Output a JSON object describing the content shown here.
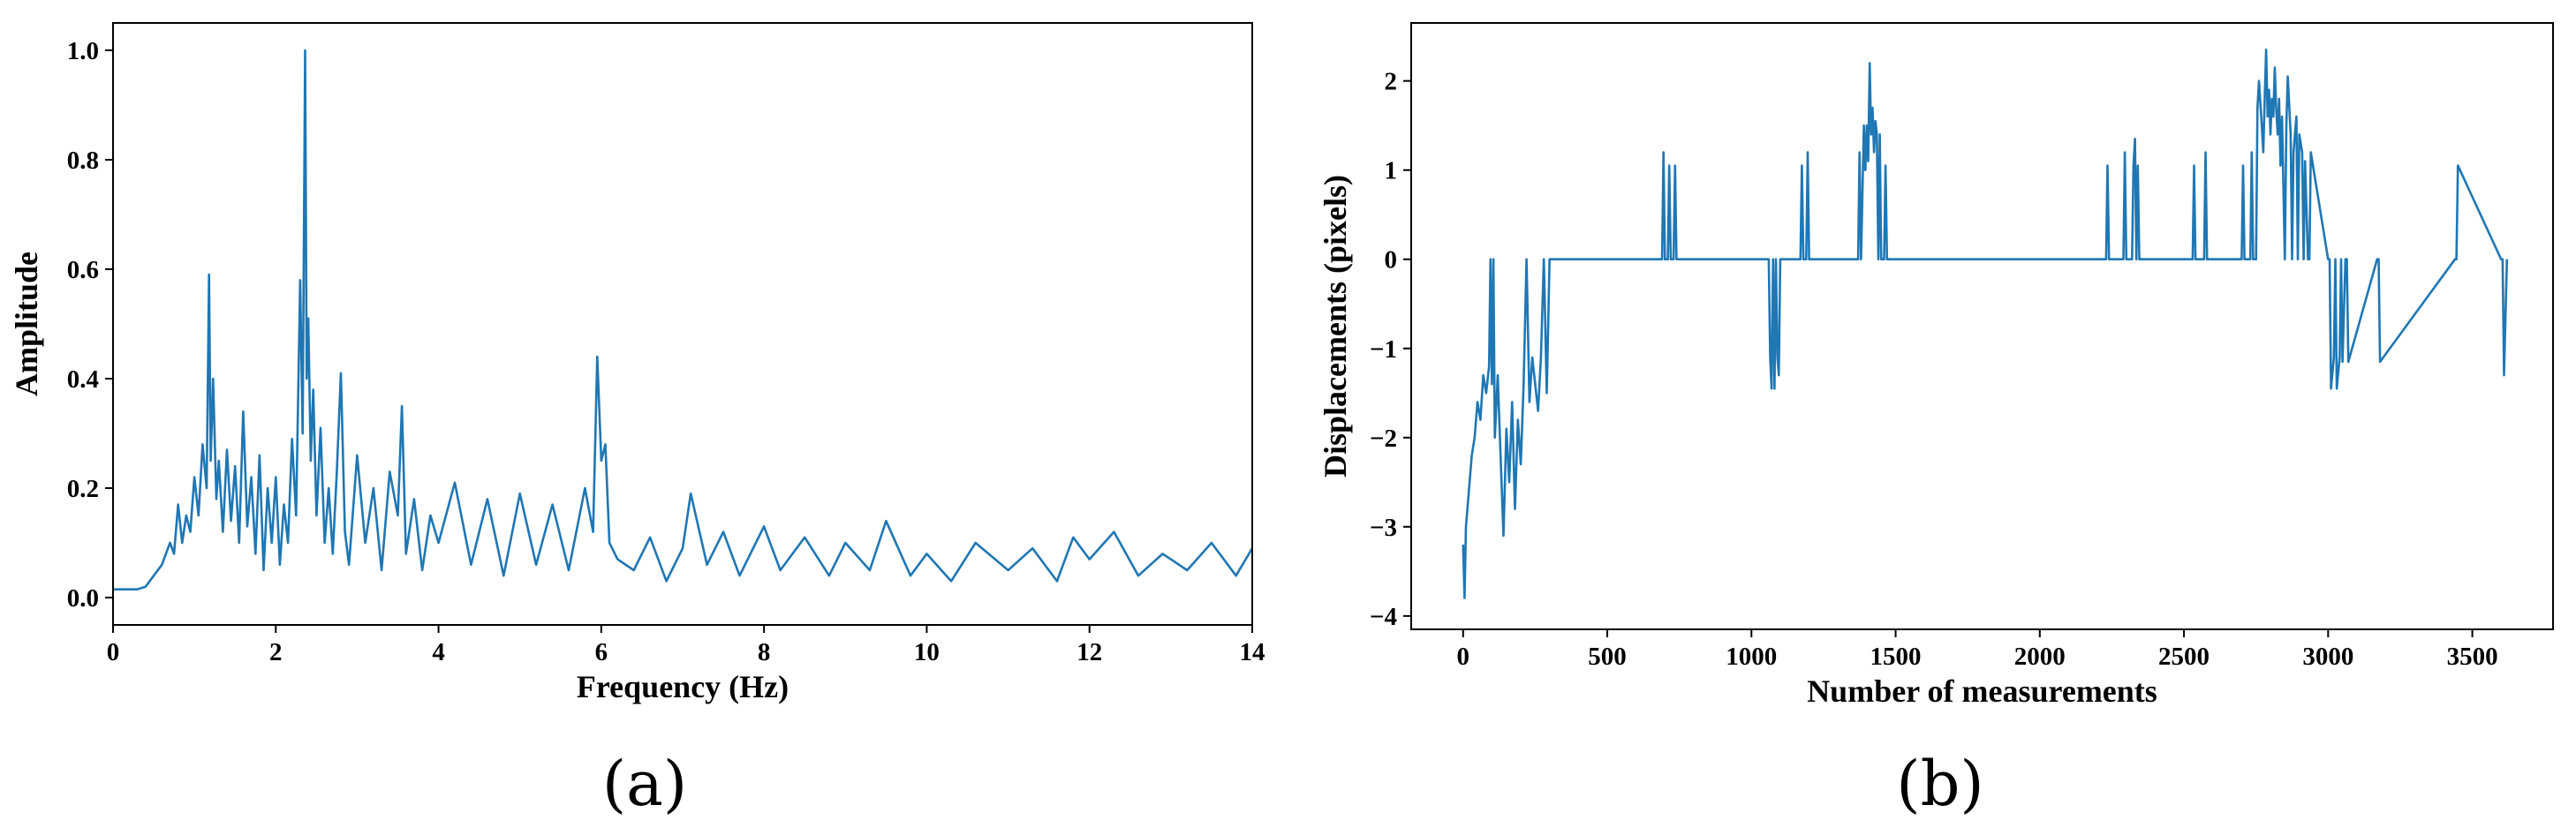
{
  "chart_data": [
    {
      "type": "line",
      "panel_label": "(a)",
      "title": "",
      "xlabel": "Frequency (Hz)",
      "ylabel": "Amplitude",
      "xlim": [
        0,
        14
      ],
      "ylim": [
        -0.05,
        1.05
      ],
      "grid": false,
      "x_ticks": [
        0,
        2,
        4,
        6,
        8,
        10,
        12,
        14
      ],
      "x_tick_labels": [
        "0",
        "2",
        "4",
        "6",
        "8",
        "10",
        "12",
        "14"
      ],
      "y_ticks": [
        0.0,
        0.2,
        0.4,
        0.6,
        0.8,
        1.0
      ],
      "y_tick_labels": [
        "0.0",
        "0.2",
        "0.4",
        "0.6",
        "0.8",
        "1.0"
      ],
      "color": "#1f77b4",
      "series": [
        {
          "x": [
            0,
            0.3,
            0.4,
            0.5,
            0.6,
            0.7,
            0.75,
            0.8,
            0.85,
            0.9,
            0.95,
            1.0,
            1.05,
            1.1,
            1.15,
            1.18,
            1.2,
            1.23,
            1.27,
            1.3,
            1.35,
            1.4,
            1.45,
            1.5,
            1.55,
            1.6,
            1.65,
            1.7,
            1.75,
            1.8,
            1.85,
            1.9,
            1.95,
            2.0,
            2.05,
            2.1,
            2.15,
            2.2,
            2.25,
            2.3,
            2.33,
            2.36,
            2.38,
            2.4,
            2.43,
            2.46,
            2.5,
            2.55,
            2.6,
            2.65,
            2.7,
            2.75,
            2.8,
            2.85,
            2.9,
            3.0,
            3.1,
            3.2,
            3.3,
            3.4,
            3.5,
            3.55,
            3.6,
            3.7,
            3.8,
            3.9,
            4.0,
            4.2,
            4.4,
            4.6,
            4.8,
            5.0,
            5.2,
            5.4,
            5.6,
            5.8,
            5.9,
            5.95,
            6.0,
            6.05,
            6.1,
            6.2,
            6.4,
            6.6,
            6.8,
            7.0,
            7.1,
            7.3,
            7.5,
            7.7,
            7.9,
            8.0,
            8.2,
            8.5,
            8.8,
            9.0,
            9.3,
            9.5,
            9.8,
            10.0,
            10.3,
            10.6,
            11.0,
            11.3,
            11.6,
            11.8,
            12.0,
            12.3,
            12.6,
            12.9,
            13.2,
            13.5,
            13.8,
            14.0
          ],
          "y": [
            0.015,
            0.015,
            0.02,
            0.04,
            0.06,
            0.1,
            0.08,
            0.17,
            0.1,
            0.15,
            0.12,
            0.22,
            0.15,
            0.28,
            0.2,
            0.59,
            0.25,
            0.4,
            0.18,
            0.25,
            0.12,
            0.27,
            0.14,
            0.24,
            0.1,
            0.34,
            0.13,
            0.22,
            0.08,
            0.26,
            0.05,
            0.2,
            0.1,
            0.22,
            0.06,
            0.17,
            0.1,
            0.29,
            0.15,
            0.58,
            0.3,
            1.0,
            0.4,
            0.51,
            0.25,
            0.38,
            0.15,
            0.31,
            0.1,
            0.2,
            0.08,
            0.23,
            0.41,
            0.12,
            0.06,
            0.26,
            0.1,
            0.2,
            0.05,
            0.23,
            0.15,
            0.35,
            0.08,
            0.18,
            0.05,
            0.15,
            0.1,
            0.21,
            0.06,
            0.18,
            0.04,
            0.19,
            0.06,
            0.17,
            0.05,
            0.2,
            0.12,
            0.44,
            0.25,
            0.28,
            0.1,
            0.07,
            0.05,
            0.11,
            0.03,
            0.09,
            0.19,
            0.06,
            0.12,
            0.04,
            0.1,
            0.13,
            0.05,
            0.11,
            0.04,
            0.1,
            0.05,
            0.14,
            0.04,
            0.08,
            0.03,
            0.1,
            0.05,
            0.09,
            0.03,
            0.11,
            0.07,
            0.12,
            0.04,
            0.08,
            0.05,
            0.1,
            0.04,
            0.09
          ]
        }
      ]
    },
    {
      "type": "line",
      "panel_label": "(b)",
      "title": "",
      "xlabel": "Number of measurements",
      "ylabel": "Displacements (pixels)",
      "xlim": [
        -180,
        3780
      ],
      "ylim": [
        -4.15,
        2.65
      ],
      "grid": false,
      "x_ticks": [
        0,
        500,
        1000,
        1500,
        2000,
        2500,
        3000,
        3500
      ],
      "x_tick_labels": [
        "0",
        "500",
        "1000",
        "1500",
        "2000",
        "2500",
        "3000",
        "3500"
      ],
      "y_ticks": [
        -4,
        -3,
        -2,
        -1,
        0,
        1,
        2
      ],
      "y_tick_labels": [
        "−4",
        "−3",
        "−2",
        "−1",
        "0",
        "1",
        "2"
      ],
      "color": "#1f77b4",
      "series": [
        {
          "x": [
            0,
            5,
            10,
            20,
            30,
            40,
            50,
            60,
            70,
            80,
            90,
            95,
            100,
            105,
            110,
            120,
            130,
            140,
            150,
            160,
            170,
            180,
            190,
            200,
            210,
            220,
            230,
            240,
            250,
            260,
            270,
            280,
            290,
            300,
            310,
            320,
            690,
            695,
            700,
            710,
            715,
            720,
            730,
            735,
            740,
            1060,
            1065,
            1070,
            1075,
            1080,
            1085,
            1090,
            1095,
            1100,
            1105,
            1170,
            1175,
            1180,
            1190,
            1195,
            1200,
            1370,
            1375,
            1380,
            1390,
            1395,
            1400,
            1405,
            1410,
            1415,
            1420,
            1425,
            1430,
            1435,
            1440,
            1445,
            1450,
            1460,
            1465,
            1470,
            1480,
            1485,
            1490,
            2230,
            2235,
            2240,
            2290,
            2295,
            2300,
            2320,
            2325,
            2330,
            2335,
            2340,
            2345,
            2530,
            2535,
            2540,
            2570,
            2575,
            2580,
            2700,
            2705,
            2710,
            2730,
            2735,
            2740,
            2750,
            2755,
            2760,
            2770,
            2775,
            2780,
            2785,
            2790,
            2795,
            2800,
            2805,
            2810,
            2815,
            2820,
            2825,
            2830,
            2835,
            2840,
            2850,
            2855,
            2860,
            2870,
            2875,
            2880,
            2890,
            2895,
            2900,
            2910,
            2915,
            2920,
            2930,
            2935,
            2940,
            3000,
            3005,
            3010,
            3020,
            3025,
            3030,
            3040,
            3045,
            3050,
            3060,
            3065,
            3070,
            3170,
            3175,
            3180,
            3440,
            3445,
            3450,
            3600,
            3605,
            3610,
            3620
          ],
          "y": [
            -3.2,
            -3.8,
            -3.0,
            -2.6,
            -2.2,
            -2.0,
            -1.6,
            -1.8,
            -1.3,
            -1.5,
            -1.2,
            0.0,
            -1.4,
            0.0,
            -2.0,
            -1.3,
            -2.2,
            -3.1,
            -1.9,
            -2.5,
            -1.6,
            -2.8,
            -1.8,
            -2.3,
            -1.4,
            0.0,
            -1.6,
            -1.1,
            -1.4,
            -1.7,
            -1.1,
            0.0,
            -1.5,
            0.0,
            0.0,
            0.0,
            0.0,
            1.2,
            0.0,
            0.0,
            1.05,
            0.0,
            0.0,
            1.05,
            0.0,
            0.0,
            -1.1,
            -1.45,
            0.0,
            -1.45,
            0.0,
            -1.1,
            -1.3,
            0.0,
            0.0,
            0.0,
            1.05,
            0.0,
            0.0,
            1.2,
            0.0,
            0.0,
            1.2,
            0.0,
            1.5,
            1.0,
            1.5,
            1.1,
            2.2,
            1.4,
            1.7,
            1.2,
            1.55,
            1.4,
            0.0,
            1.4,
            0.0,
            0.0,
            1.05,
            0.0,
            0.0,
            0.0,
            0.0,
            0.0,
            1.05,
            0.0,
            0.0,
            1.2,
            0.0,
            0.0,
            1.05,
            1.35,
            0.0,
            1.05,
            0.0,
            0.0,
            1.05,
            0.0,
            0.0,
            1.2,
            0.0,
            0.0,
            1.05,
            0.0,
            0.0,
            1.2,
            0.0,
            0.0,
            1.7,
            2.0,
            1.5,
            1.2,
            1.8,
            2.35,
            1.6,
            1.9,
            1.4,
            1.8,
            1.6,
            2.15,
            1.7,
            1.4,
            1.8,
            1.05,
            1.6,
            0.0,
            1.5,
            2.05,
            1.4,
            0.0,
            1.2,
            1.6,
            0.0,
            1.4,
            1.2,
            0.0,
            1.1,
            0.0,
            0.0,
            1.2,
            0.0,
            0.0,
            -1.45,
            -1.1,
            0.0,
            -1.45,
            -1.1,
            0.0,
            -1.15,
            0.0,
            0.0,
            -1.15,
            0.0,
            0.0,
            -1.15,
            0.0,
            0.0,
            1.05,
            0.0,
            0.0,
            -1.3,
            0.0
          ]
        }
      ]
    }
  ]
}
